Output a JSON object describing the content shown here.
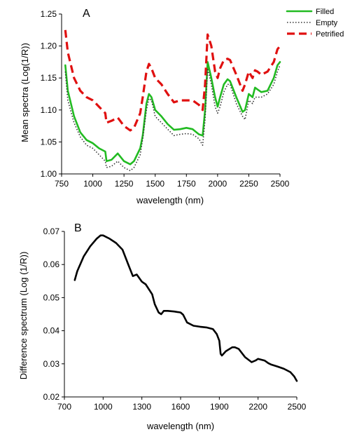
{
  "chart_data": [
    {
      "type": "line",
      "panel_label": "A",
      "xlabel": "wavelength (nm)",
      "ylabel": "Mean spectra (Log(1/R))",
      "xlim": [
        750,
        2500
      ],
      "ylim": [
        1.0,
        1.25
      ],
      "x_ticks": [
        "750",
        "1000",
        "1250",
        "1500",
        "1750",
        "2000",
        "2250",
        "2500"
      ],
      "y_ticks": [
        "1.00",
        "1.05",
        "1.10",
        "1.15",
        "1.20",
        "1.25"
      ],
      "legend_position": "top-right",
      "series": [
        {
          "name": "Filled",
          "color": "#22bb22",
          "style": "solid",
          "x": [
            780,
            800,
            850,
            900,
            950,
            1000,
            1050,
            1100,
            1110,
            1150,
            1200,
            1250,
            1300,
            1330,
            1380,
            1400,
            1430,
            1450,
            1470,
            1500,
            1550,
            1600,
            1650,
            1700,
            1750,
            1800,
            1850,
            1880,
            1900,
            1920,
            1950,
            1980,
            2000,
            2020,
            2050,
            2080,
            2100,
            2150,
            2200,
            2220,
            2250,
            2280,
            2300,
            2320,
            2350,
            2400,
            2450,
            2480,
            2500
          ],
          "y": [
            1.17,
            1.13,
            1.09,
            1.065,
            1.053,
            1.048,
            1.04,
            1.035,
            1.02,
            1.022,
            1.032,
            1.02,
            1.015,
            1.02,
            1.04,
            1.06,
            1.11,
            1.125,
            1.12,
            1.1,
            1.09,
            1.078,
            1.069,
            1.07,
            1.072,
            1.07,
            1.062,
            1.06,
            1.1,
            1.175,
            1.15,
            1.12,
            1.105,
            1.12,
            1.14,
            1.148,
            1.145,
            1.12,
            1.097,
            1.1,
            1.125,
            1.12,
            1.135,
            1.132,
            1.128,
            1.13,
            1.15,
            1.17,
            1.175
          ]
        },
        {
          "name": "Empty",
          "color": "#333333",
          "style": "dotted",
          "x": [
            780,
            800,
            850,
            900,
            950,
            1000,
            1050,
            1100,
            1110,
            1150,
            1200,
            1250,
            1300,
            1330,
            1380,
            1400,
            1430,
            1450,
            1470,
            1500,
            1550,
            1600,
            1650,
            1700,
            1750,
            1800,
            1850,
            1880,
            1900,
            1920,
            1950,
            1980,
            2000,
            2020,
            2050,
            2080,
            2100,
            2150,
            2200,
            2220,
            2250,
            2280,
            2300,
            2320,
            2350,
            2400,
            2450,
            2480,
            2500
          ],
          "y": [
            1.16,
            1.115,
            1.08,
            1.058,
            1.045,
            1.04,
            1.03,
            1.02,
            1.01,
            1.012,
            1.02,
            1.01,
            1.005,
            1.01,
            1.03,
            1.055,
            1.1,
            1.118,
            1.115,
            1.09,
            1.08,
            1.07,
            1.06,
            1.062,
            1.063,
            1.062,
            1.055,
            1.045,
            1.085,
            1.165,
            1.14,
            1.105,
            1.095,
            1.105,
            1.128,
            1.14,
            1.14,
            1.11,
            1.09,
            1.085,
            1.115,
            1.11,
            1.12,
            1.12,
            1.12,
            1.125,
            1.14,
            1.16,
            1.17
          ]
        },
        {
          "name": "Petrified",
          "color": "#e01010",
          "style": "dashed",
          "x": [
            780,
            800,
            850,
            900,
            950,
            1000,
            1050,
            1100,
            1110,
            1150,
            1200,
            1250,
            1300,
            1330,
            1380,
            1400,
            1430,
            1450,
            1470,
            1500,
            1550,
            1600,
            1650,
            1700,
            1750,
            1800,
            1850,
            1880,
            1900,
            1920,
            1950,
            1980,
            2000,
            2020,
            2050,
            2080,
            2100,
            2150,
            2200,
            2220,
            2250,
            2280,
            2300,
            2320,
            2350,
            2400,
            2450,
            2480,
            2500
          ],
          "y": [
            1.225,
            1.19,
            1.15,
            1.13,
            1.12,
            1.115,
            1.105,
            1.095,
            1.08,
            1.083,
            1.088,
            1.075,
            1.068,
            1.072,
            1.095,
            1.12,
            1.16,
            1.172,
            1.165,
            1.15,
            1.14,
            1.125,
            1.112,
            1.115,
            1.115,
            1.115,
            1.108,
            1.1,
            1.14,
            1.218,
            1.2,
            1.16,
            1.15,
            1.165,
            1.178,
            1.18,
            1.178,
            1.155,
            1.13,
            1.14,
            1.16,
            1.15,
            1.162,
            1.16,
            1.155,
            1.16,
            1.175,
            1.195,
            1.2
          ]
        }
      ]
    },
    {
      "type": "line",
      "panel_label": "B",
      "xlabel": "wavelength (nm)",
      "ylabel": "Difference spectrum (Log (1/R))",
      "xlim": [
        700,
        2500
      ],
      "ylim": [
        0.02,
        0.07
      ],
      "x_ticks": [
        "700",
        "1000",
        "1300",
        "1600",
        "1900",
        "2200",
        "2500"
      ],
      "y_ticks": [
        "0.02",
        "0.03",
        "0.04",
        "0.05",
        "0.06",
        "0.07"
      ],
      "series": [
        {
          "color": "#000000",
          "style": "solid",
          "x": [
            780,
            800,
            850,
            900,
            950,
            980,
            1000,
            1050,
            1100,
            1150,
            1200,
            1230,
            1260,
            1300,
            1330,
            1380,
            1400,
            1430,
            1450,
            1470,
            1500,
            1550,
            1600,
            1620,
            1650,
            1700,
            1750,
            1800,
            1850,
            1880,
            1900,
            1910,
            1920,
            1950,
            2000,
            2020,
            2050,
            2100,
            2150,
            2180,
            2200,
            2250,
            2280,
            2300,
            2350,
            2400,
            2450,
            2480,
            2500
          ],
          "y": [
            0.0553,
            0.058,
            0.0625,
            0.0655,
            0.0678,
            0.0688,
            0.0688,
            0.0678,
            0.0665,
            0.0645,
            0.0595,
            0.0565,
            0.057,
            0.0548,
            0.054,
            0.051,
            0.048,
            0.0455,
            0.045,
            0.046,
            0.046,
            0.0458,
            0.0455,
            0.0448,
            0.0425,
            0.0415,
            0.0412,
            0.041,
            0.0405,
            0.039,
            0.037,
            0.033,
            0.0325,
            0.0338,
            0.035,
            0.035,
            0.0345,
            0.032,
            0.0305,
            0.031,
            0.0315,
            0.031,
            0.0302,
            0.0298,
            0.0292,
            0.0285,
            0.0275,
            0.0262,
            0.0248
          ]
        }
      ]
    }
  ]
}
